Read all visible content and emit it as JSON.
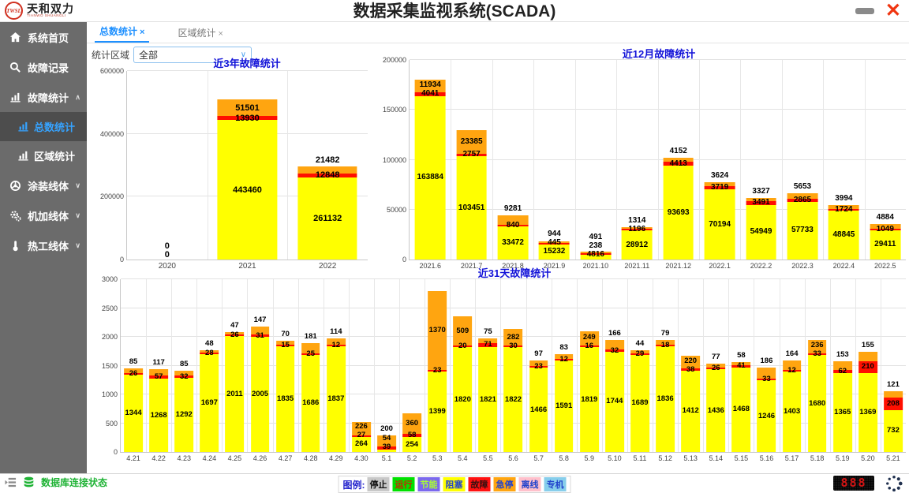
{
  "colors": {
    "accent_blue": "#1212d8",
    "tab_blue": "#1e90ff",
    "status_green": "#1fb335",
    "close_red": "#f03510"
  },
  "header": {
    "logo_abbr": "TWSL",
    "logo_name": "天和双力",
    "logo_sub": "TIANWO SHUANGLI",
    "title": "数据采集监视系统(SCADA)",
    "close_glyph": "✕"
  },
  "sidebar": {
    "items": [
      {
        "label": "系统首页",
        "icon": "home-icon"
      },
      {
        "label": "故障记录",
        "icon": "search-icon"
      },
      {
        "label": "故障统计",
        "icon": "chart-icon",
        "chevron": "∧",
        "children": [
          {
            "label": "总数统计",
            "active": true
          },
          {
            "label": "区域统计",
            "active": false
          }
        ]
      },
      {
        "label": "涂装线体",
        "icon": "wheel-icon",
        "chevron": "∨"
      },
      {
        "label": "机加线体",
        "icon": "gears-icon",
        "chevron": "∨"
      },
      {
        "label": "热工线体",
        "icon": "thermo-icon",
        "chevron": "∨"
      }
    ]
  },
  "tabs": [
    {
      "label": "总数统计",
      "close": "×",
      "active": true
    },
    {
      "label": "区域统计",
      "close": "×",
      "active": false
    }
  ],
  "filter": {
    "label": "统计区域",
    "value": "全部",
    "chevron": "∨"
  },
  "chart_data": [
    {
      "type": "bar",
      "stacked": true,
      "title": "近3年故障统计",
      "categories": [
        "2020",
        "2021",
        "2022"
      ],
      "series": [
        {
          "name": "阻塞",
          "color": "#ffff00",
          "values": [
            0,
            443460,
            261132
          ]
        },
        {
          "name": "故障",
          "color": "#ff0f00",
          "values": [
            0,
            13930,
            12848
          ]
        },
        {
          "name": "急停",
          "color": "#ffa510",
          "values": [
            0,
            51501,
            21482
          ]
        }
      ],
      "ylim": [
        0,
        600000
      ],
      "ytick_step": 200000,
      "grid": true,
      "legend_position": "none"
    },
    {
      "type": "bar",
      "stacked": true,
      "title": "近12月故障统计",
      "categories": [
        "2021.6",
        "2021.7",
        "2021.8",
        "2021.9",
        "2021.10",
        "2021.11",
        "2021.12",
        "2022.1",
        "2022.2",
        "2022.3",
        "2022.4",
        "2022.5"
      ],
      "series": [
        {
          "name": "阻塞",
          "color": "#ffff00",
          "values": [
            163884,
            103451,
            33472,
            15232,
            4816,
            28912,
            93693,
            70194,
            54949,
            57733,
            48845,
            29411
          ]
        },
        {
          "name": "故障",
          "color": "#ff0f00",
          "values": [
            4041,
            2757,
            840,
            445,
            238,
            1196,
            4413,
            3719,
            3491,
            2865,
            1724,
            1049
          ]
        },
        {
          "name": "急停",
          "color": "#ffa510",
          "values": [
            11934,
            23385,
            9281,
            944,
            491,
            1314,
            4152,
            3624,
            3327,
            5653,
            3994,
            4884
          ]
        }
      ],
      "ylim": [
        0,
        200000
      ],
      "ytick_step": 50000,
      "grid": true,
      "legend_position": "none"
    },
    {
      "type": "bar",
      "stacked": true,
      "title": "近31天故障统计",
      "categories": [
        "4.21",
        "4.22",
        "4.23",
        "4.24",
        "4.25",
        "4.26",
        "4.27",
        "4.28",
        "4.29",
        "4.30",
        "5.1",
        "5.2",
        "5.3",
        "5.4",
        "5.5",
        "5.6",
        "5.7",
        "5.8",
        "5.9",
        "5.10",
        "5.11",
        "5.12",
        "5.13",
        "5.14",
        "5.15",
        "5.16",
        "5.17",
        "5.18",
        "5.19",
        "5.20",
        "5.21"
      ],
      "series": [
        {
          "name": "阻塞",
          "color": "#ffff00",
          "values": [
            1344,
            1268,
            1292,
            1697,
            2011,
            2005,
            1835,
            1686,
            1837,
            264,
            39,
            254,
            1399,
            1820,
            1821,
            1822,
            1466,
            1591,
            1819,
            1744,
            1689,
            1836,
            1412,
            1436,
            1468,
            1246,
            1403,
            1680,
            1365,
            1369,
            732
          ]
        },
        {
          "name": "故障",
          "color": "#ff0f00",
          "values": [
            26,
            57,
            32,
            28,
            26,
            31,
            15,
            25,
            12,
            27,
            54,
            58,
            23,
            20,
            71,
            30,
            23,
            12,
            16,
            32,
            29,
            18,
            38,
            26,
            41,
            33,
            12,
            33,
            62,
            210,
            208
          ]
        },
        {
          "name": "急停",
          "color": "#ffa510",
          "values": [
            85,
            117,
            85,
            48,
            47,
            147,
            70,
            181,
            114,
            226,
            200,
            360,
            1370,
            509,
            75,
            282,
            97,
            83,
            249,
            166,
            44,
            79,
            220,
            77,
            58,
            186,
            164,
            236,
            153,
            155,
            121
          ]
        }
      ],
      "ylim": [
        0,
        3000
      ],
      "ytick_step": 500,
      "grid": true,
      "legend_position": "none"
    }
  ],
  "statusbar": {
    "db_status": "数据库连接状态",
    "legend_label": "图例:",
    "legend": [
      {
        "label": "停止",
        "bg": "#c8c8c8",
        "fg": "#111111"
      },
      {
        "label": "运行",
        "bg": "#00e000",
        "fg": "#cc2200"
      },
      {
        "label": "节能",
        "bg": "#7b68ee",
        "fg": "#aaff33"
      },
      {
        "label": "阻塞",
        "bg": "#ffff00",
        "fg": "#2244cc"
      },
      {
        "label": "故障",
        "bg": "#ff1111",
        "fg": "#331111"
      },
      {
        "label": "急停",
        "bg": "#ffa510",
        "fg": "#2244cc"
      },
      {
        "label": "离线",
        "bg": "#ffc0cb",
        "fg": "#2244cc"
      },
      {
        "label": "专机",
        "bg": "#87ceeb",
        "fg": "#2244cc"
      }
    ],
    "led_value": "888"
  }
}
